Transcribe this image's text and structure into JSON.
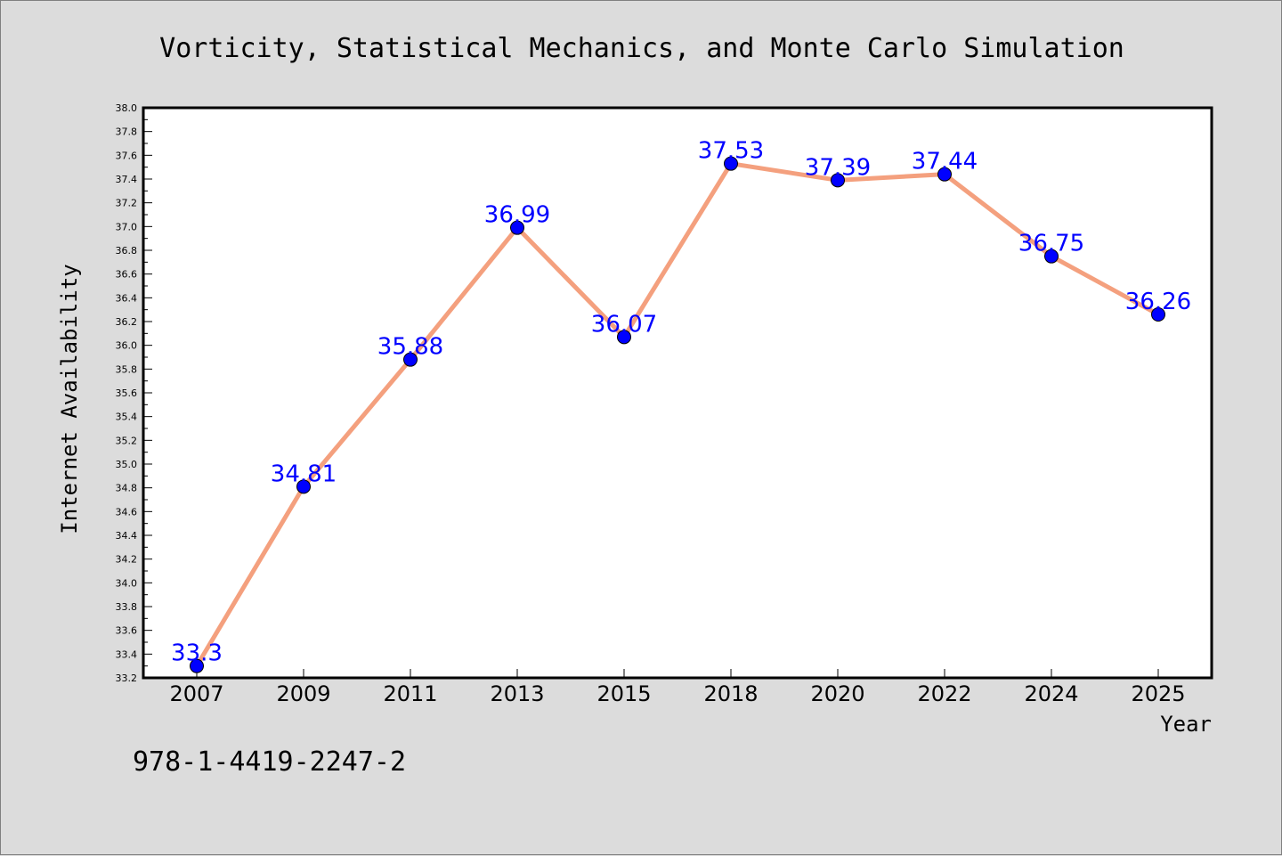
{
  "chart_data": {
    "type": "line",
    "title": "Vorticity, Statistical Mechanics, and Monte Carlo Simulation",
    "xlabel": "Year",
    "ylabel": "Internet Availability",
    "categories": [
      "2007",
      "2009",
      "2011",
      "2013",
      "2015",
      "2018",
      "2020",
      "2022",
      "2024",
      "2025"
    ],
    "values": [
      33.3,
      34.81,
      35.88,
      36.99,
      36.07,
      37.53,
      37.39,
      37.44,
      36.75,
      36.26
    ],
    "data_labels": [
      "33.3",
      "34.81",
      "35.88",
      "36.99",
      "36.07",
      "37.53",
      "37.39",
      "37.44",
      "36.75",
      "36.26"
    ],
    "ylim": [
      33.2,
      38.0
    ],
    "ytick_step": 0.2,
    "grid": false,
    "legend": "none",
    "line_color": "#f4a07e",
    "marker_color": "#0000ff",
    "label_color": "#0000ff"
  },
  "annotation": "978-1-4419-2247-2"
}
